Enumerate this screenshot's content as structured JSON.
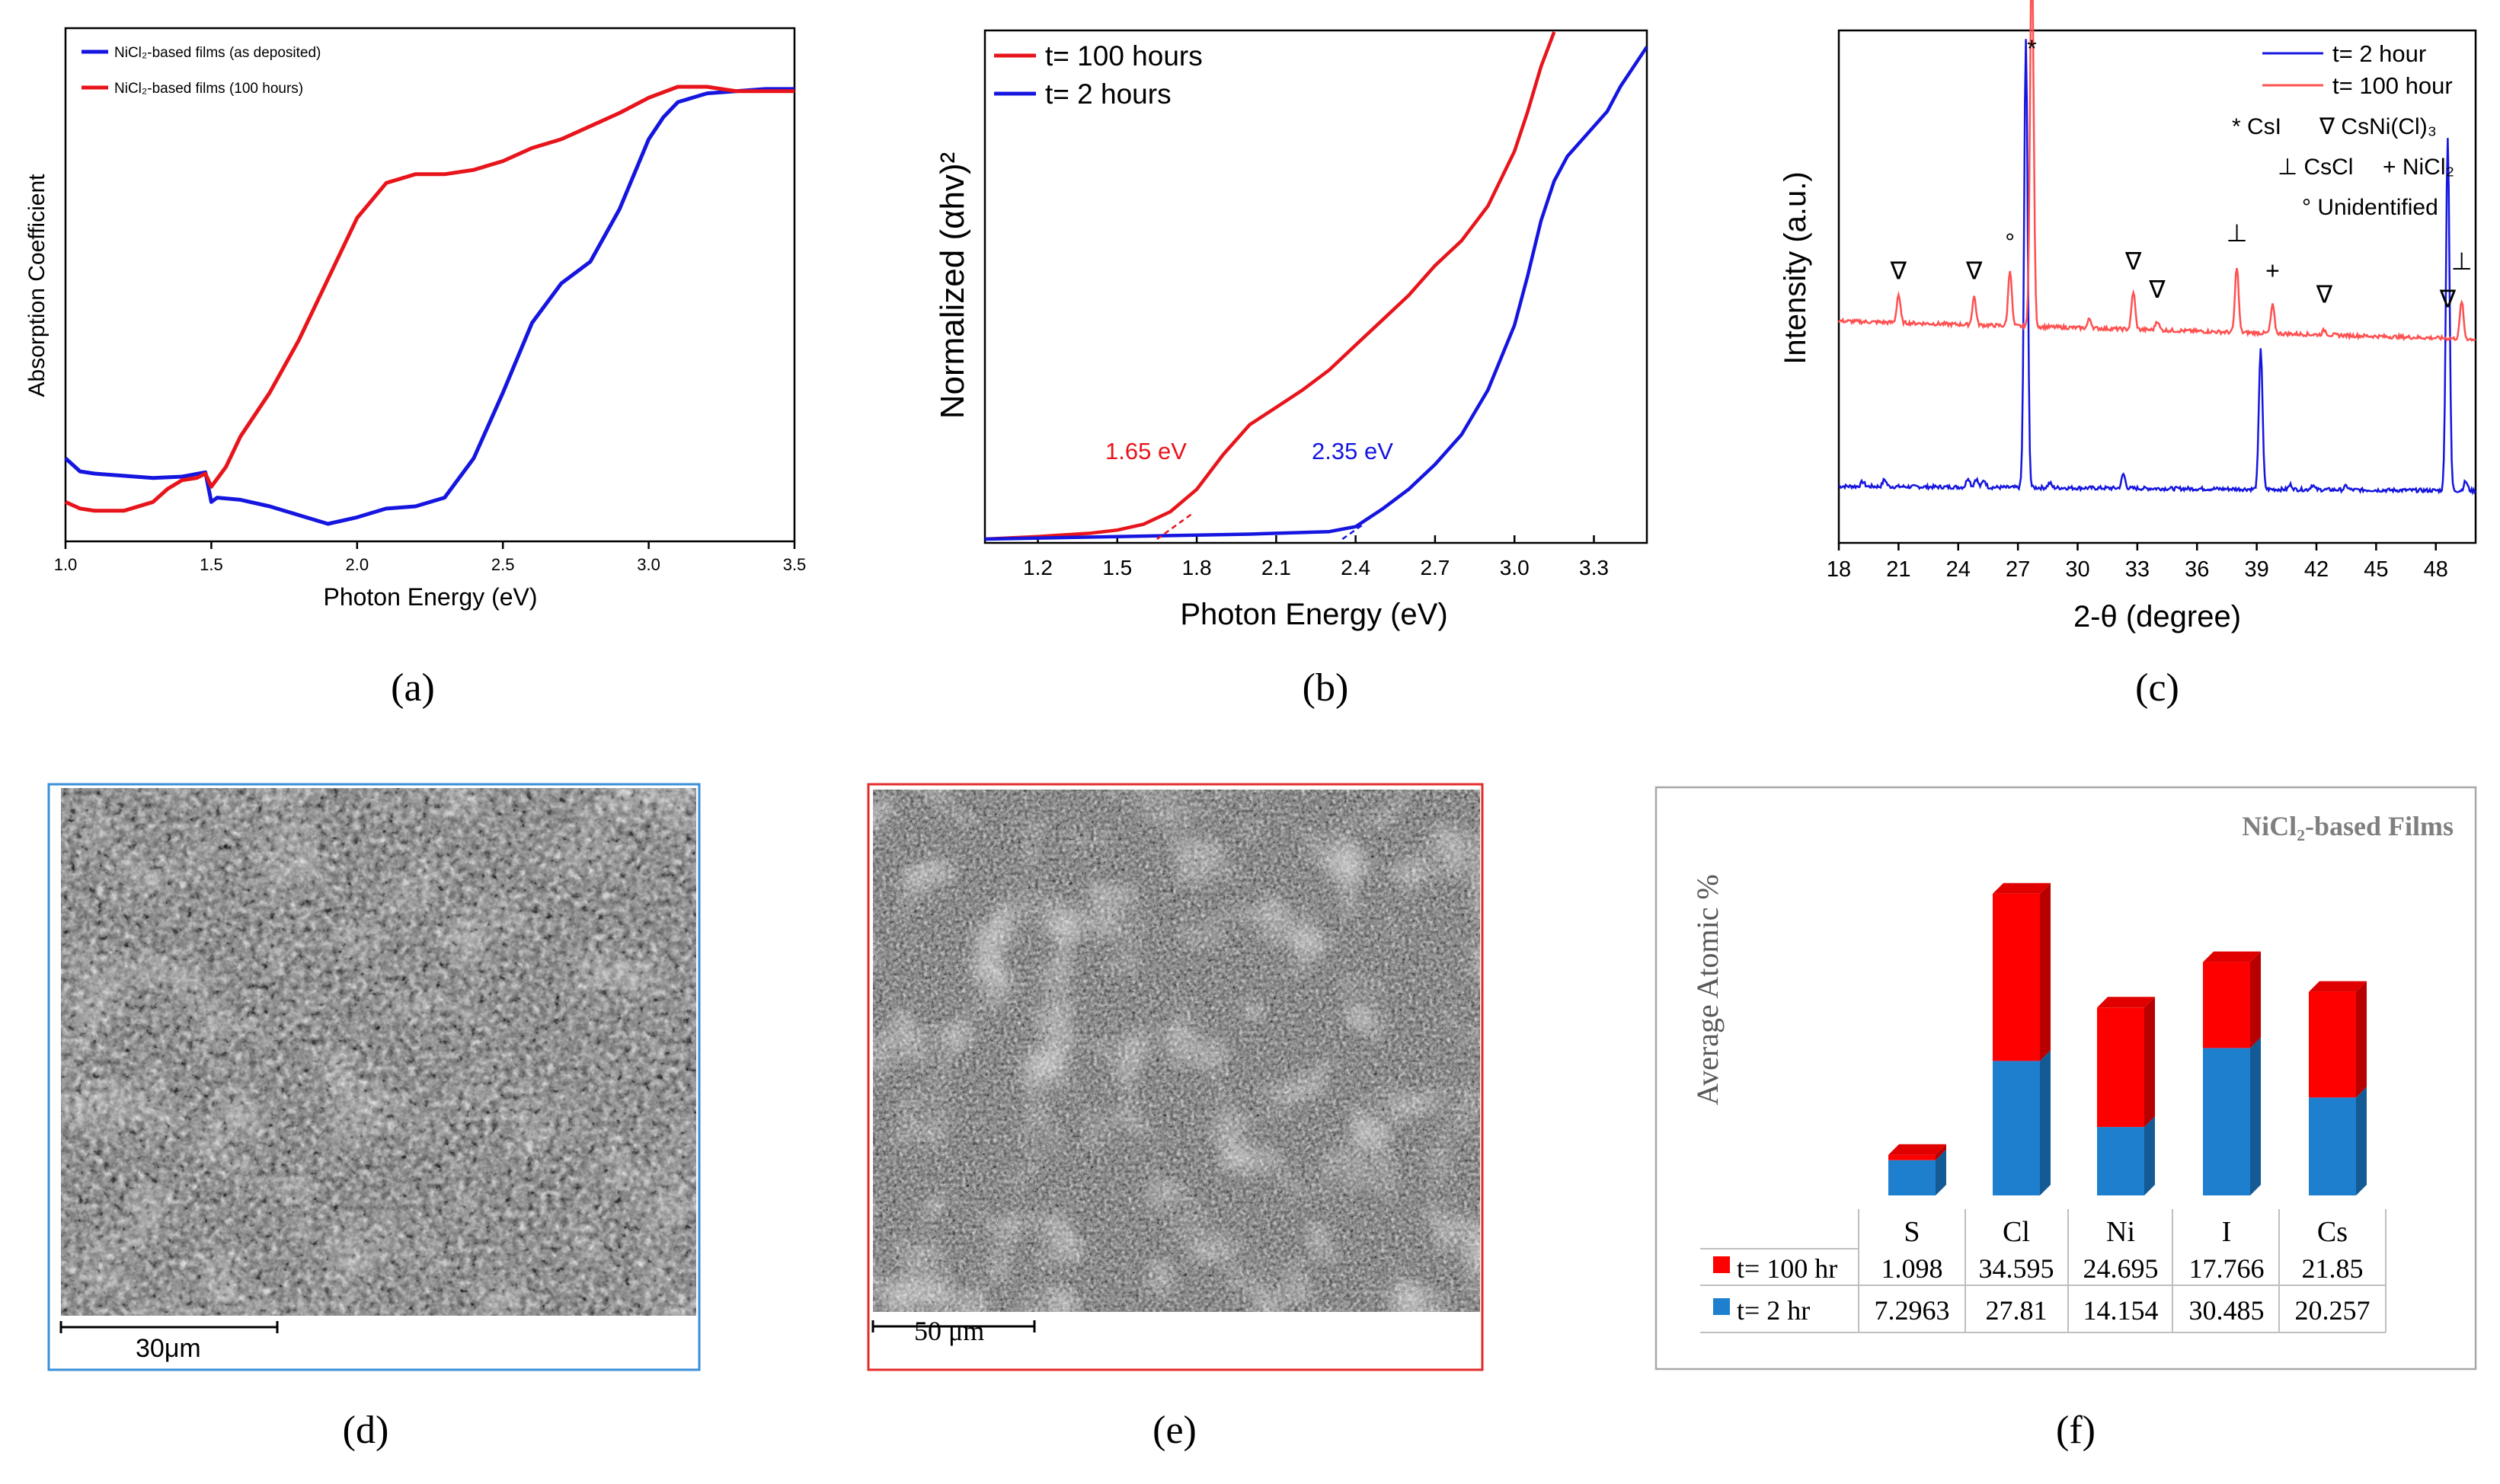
{
  "panel_labels": [
    "(a)",
    "(b)",
    "(c)",
    "(d)",
    "(e)",
    "(f)"
  ],
  "colors": {
    "red": "#e8141b",
    "blue": "#1515e0",
    "bar_red": "#ff0000",
    "bar_blue": "#1f7fcf",
    "frame_blue": "#3a8fd8",
    "frame_red": "#e52b2b"
  },
  "chart_data": [
    {
      "id": "a",
      "type": "line",
      "title": "",
      "xlabel": "Photon Energy (eV)",
      "ylabel": "Absorption Coefficient",
      "xlim": [
        1.0,
        3.5
      ],
      "ylim": [
        0,
        1
      ],
      "xticks": [
        "1.0",
        "1.5",
        "2.0",
        "2.5",
        "3.0",
        "3.5"
      ],
      "legend": [
        "NiCl₂-based films (as deposited)",
        "NiCl₂-based films (100 hours)"
      ],
      "series": [
        {
          "name": "NiCl₂-based films (as deposited)",
          "color": "#1515e0",
          "x": [
            1.0,
            1.05,
            1.1,
            1.2,
            1.3,
            1.4,
            1.48,
            1.5,
            1.52,
            1.6,
            1.7,
            1.8,
            1.9,
            2.0,
            2.1,
            2.2,
            2.3,
            2.4,
            2.5,
            2.6,
            2.7,
            2.8,
            2.9,
            3.0,
            3.05,
            3.1,
            3.2,
            3.3,
            3.4,
            3.5
          ],
          "y": [
            0.15,
            0.12,
            0.115,
            0.11,
            0.105,
            0.108,
            0.118,
            0.05,
            0.06,
            0.055,
            0.04,
            0.02,
            0.0,
            0.015,
            0.035,
            0.04,
            0.06,
            0.15,
            0.3,
            0.46,
            0.55,
            0.6,
            0.72,
            0.88,
            0.93,
            0.965,
            0.985,
            0.99,
            0.995,
            0.995
          ]
        },
        {
          "name": "NiCl₂-based films (100 hours)",
          "color": "#e8141b",
          "x": [
            1.0,
            1.05,
            1.1,
            1.2,
            1.3,
            1.35,
            1.4,
            1.45,
            1.48,
            1.5,
            1.55,
            1.6,
            1.7,
            1.8,
            1.9,
            2.0,
            2.1,
            2.2,
            2.3,
            2.4,
            2.5,
            2.6,
            2.7,
            2.8,
            2.9,
            3.0,
            3.1,
            3.2,
            3.3,
            3.4,
            3.5
          ],
          "y": [
            0.05,
            0.035,
            0.03,
            0.03,
            0.05,
            0.08,
            0.1,
            0.105,
            0.115,
            0.085,
            0.13,
            0.2,
            0.3,
            0.42,
            0.56,
            0.7,
            0.78,
            0.8,
            0.8,
            0.81,
            0.83,
            0.86,
            0.88,
            0.91,
            0.94,
            0.975,
            1.0,
            1.0,
            0.99,
            0.99,
            0.99
          ]
        }
      ]
    },
    {
      "id": "b",
      "type": "line",
      "title": "",
      "xlabel": "Photon Energy (eV)",
      "ylabel": "Normalized (αhv)²",
      "xlim": [
        1.0,
        3.5
      ],
      "ylim": [
        0,
        1
      ],
      "xticks": [
        "1.2",
        "1.5",
        "1.8",
        "2.1",
        "2.4",
        "2.7",
        "3.0",
        "3.3"
      ],
      "legend": [
        "t= 100 hours",
        "t= 2 hours"
      ],
      "annotations": [
        {
          "text": "1.65 eV",
          "x": 1.65,
          "color": "#e8141b"
        },
        {
          "text": "2.35 eV",
          "x": 2.35,
          "color": "#1515e0"
        }
      ],
      "series": [
        {
          "name": "t= 100 hours",
          "color": "#e8141b",
          "x": [
            1.0,
            1.2,
            1.4,
            1.5,
            1.6,
            1.7,
            1.8,
            1.9,
            2.0,
            2.1,
            2.2,
            2.3,
            2.4,
            2.5,
            2.6,
            2.7,
            2.8,
            2.9,
            3.0,
            3.05,
            3.1,
            3.15
          ],
          "y": [
            0.0,
            0.005,
            0.012,
            0.018,
            0.03,
            0.055,
            0.1,
            0.17,
            0.23,
            0.265,
            0.3,
            0.34,
            0.39,
            0.44,
            0.49,
            0.55,
            0.6,
            0.67,
            0.78,
            0.86,
            0.95,
            1.02
          ]
        },
        {
          "name": "t= 2 hours",
          "color": "#1515e0",
          "x": [
            1.0,
            1.5,
            2.0,
            2.3,
            2.4,
            2.5,
            2.6,
            2.7,
            2.8,
            2.9,
            3.0,
            3.05,
            3.1,
            3.15,
            3.2,
            3.3,
            3.35,
            3.4,
            3.45,
            3.5
          ],
          "y": [
            0.0,
            0.005,
            0.01,
            0.015,
            0.025,
            0.06,
            0.1,
            0.15,
            0.21,
            0.3,
            0.43,
            0.53,
            0.64,
            0.72,
            0.77,
            0.83,
            0.86,
            0.91,
            0.95,
            0.99
          ]
        }
      ]
    },
    {
      "id": "c",
      "type": "line",
      "title": "",
      "xlabel": "2-θ (degree)",
      "ylabel": "Intensity (a.u.)",
      "xlim": [
        18,
        50
      ],
      "ylim": [
        0,
        1
      ],
      "xticks": [
        "18",
        "21",
        "24",
        "27",
        "30",
        "33",
        "36",
        "39",
        "42",
        "45",
        "48"
      ],
      "legend": [
        "t= 2 hour",
        "t= 100 hour"
      ],
      "legend_notes": [
        "* CsI",
        "∇ CsNi(Cl)₃",
        "⊥ CsCl",
        "+ NiCl₂",
        "° Unidentified"
      ],
      "peak_markers": [
        {
          "x": 21.0,
          "symbol": "∇"
        },
        {
          "x": 24.8,
          "symbol": "∇"
        },
        {
          "x": 26.6,
          "symbol": "°"
        },
        {
          "x": 27.7,
          "symbol": "*"
        },
        {
          "x": 32.8,
          "symbol": "∇"
        },
        {
          "x": 34.0,
          "symbol": "∇"
        },
        {
          "x": 38.0,
          "symbol": "⊥"
        },
        {
          "x": 39.8,
          "symbol": "+"
        },
        {
          "x": 42.4,
          "symbol": "∇"
        },
        {
          "x": 48.6,
          "symbol": "∇"
        },
        {
          "x": 49.3,
          "symbol": "⊥"
        }
      ],
      "series": [
        {
          "name": "t= 2 hour",
          "color": "#1515e0",
          "baseline": 0.12,
          "peaks": [
            [
              19.2,
              0.01
            ],
            [
              20.3,
              0.015
            ],
            [
              24.5,
              0.02
            ],
            [
              24.9,
              0.018
            ],
            [
              25.3,
              0.015
            ],
            [
              27.4,
              0.95
            ],
            [
              28.6,
              0.01
            ],
            [
              32.3,
              0.03
            ],
            [
              39.2,
              0.3
            ],
            [
              40.7,
              0.01
            ],
            [
              41.8,
              0.01
            ],
            [
              43.5,
              0.008
            ],
            [
              48.6,
              0.75
            ],
            [
              49.5,
              0.02
            ]
          ]
        },
        {
          "name": "t= 100 hour",
          "color": "#ff5050",
          "baseline": 0.47,
          "peaks": [
            [
              21.0,
              0.06
            ],
            [
              24.8,
              0.06
            ],
            [
              26.6,
              0.12
            ],
            [
              27.7,
              0.8
            ],
            [
              30.6,
              0.02
            ],
            [
              32.8,
              0.08
            ],
            [
              34.0,
              0.02
            ],
            [
              38.0,
              0.14
            ],
            [
              39.8,
              0.06
            ],
            [
              42.4,
              0.01
            ],
            [
              49.3,
              0.08
            ]
          ]
        }
      ]
    },
    {
      "id": "f",
      "type": "bar",
      "stacked": true,
      "title": "NiCl₂-based Films",
      "ylabel": "Average Atomic %",
      "categories": [
        "S",
        "Cl",
        "Ni",
        "I",
        "Cs"
      ],
      "series": [
        {
          "name": "t= 100 hr",
          "color": "#ff0000",
          "values": [
            1.098,
            34.595,
            24.695,
            17.766,
            21.85
          ],
          "labels": [
            "1.098",
            "34.595",
            "24.695",
            "17.766",
            "21.85"
          ]
        },
        {
          "name": "t= 2 hr",
          "color": "#1f7fcf",
          "values": [
            7.2963,
            27.81,
            14.154,
            30.485,
            20.257
          ],
          "labels": [
            "7.2963",
            "27.81",
            "14.154",
            "30.485",
            "20.257"
          ]
        }
      ]
    }
  ],
  "micrographs": {
    "d": {
      "scale_label": "30μm"
    },
    "e": {
      "scale_label": "50 μm"
    }
  }
}
